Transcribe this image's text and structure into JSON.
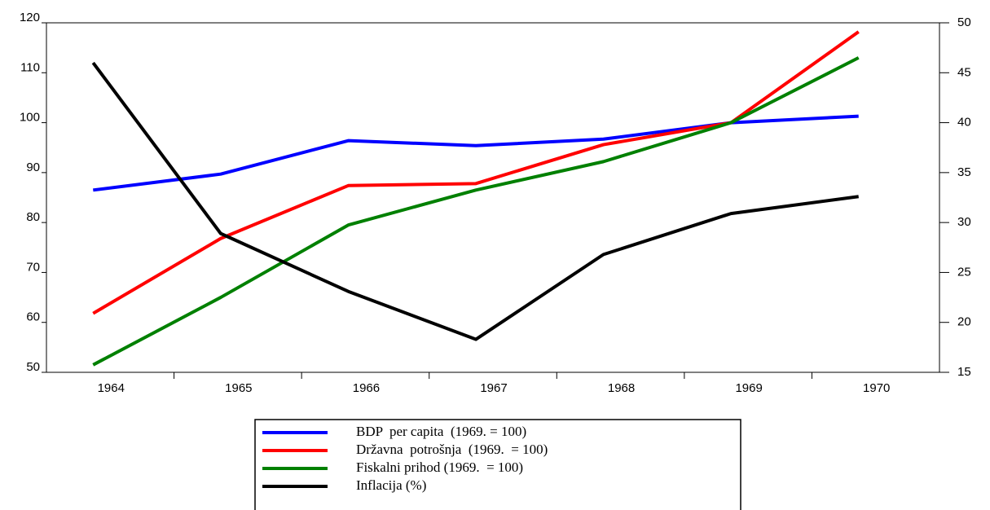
{
  "chart_data": {
    "type": "line",
    "categories": [
      "1964",
      "1965",
      "1966",
      "1967",
      "1968",
      "1969",
      "1970"
    ],
    "series": [
      {
        "name": "BDP  per capita  (1969. = 100)",
        "color": "#0000ff",
        "values": [
          86.5,
          89.7,
          96.4,
          95.4,
          96.7,
          100,
          101.3
        ]
      },
      {
        "name": "Državna  potrošnja  (1969.  = 100)",
        "color": "#ff0000",
        "values": [
          61.8,
          76.8,
          87.4,
          87.8,
          95.6,
          100,
          118.2
        ]
      },
      {
        "name": "Fiskalni prihod (1969.  = 100)",
        "color": "#008000",
        "values": [
          51.5,
          65,
          79.5,
          86.5,
          92.2,
          100,
          113
        ]
      },
      {
        "name": "Inflacija (%)",
        "color": "#000000",
        "axis": "y2",
        "values": [
          46.0,
          28.9,
          23.1,
          18.3,
          26.8,
          30.9,
          32.6
        ]
      }
    ],
    "ylim": [
      50,
      120
    ],
    "yticks": [
      50,
      60,
      70,
      80,
      90,
      100,
      110,
      120
    ],
    "y2lim": [
      15,
      50
    ],
    "y2ticks": [
      15,
      20,
      25,
      30,
      35,
      40,
      45,
      50
    ]
  }
}
